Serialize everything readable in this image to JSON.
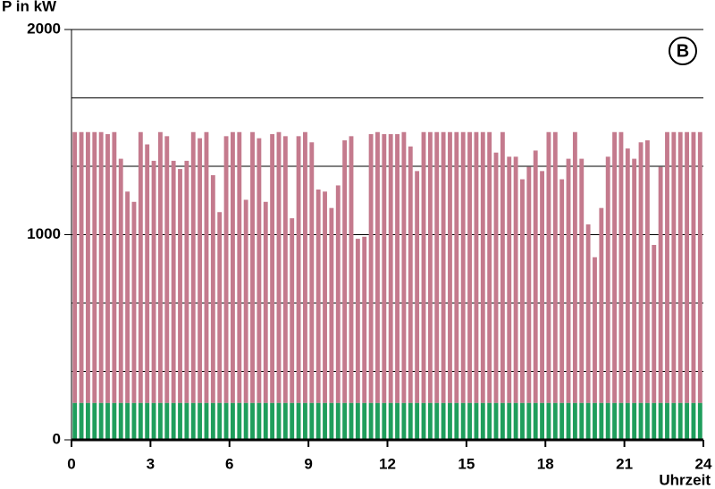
{
  "chart_data": {
    "type": "stacked-bar",
    "y_label": "P in kW",
    "x_label": "Uhrzeit",
    "annotation": "B",
    "xlim": [
      0,
      24
    ],
    "xticks": [
      0,
      3,
      6,
      9,
      12,
      15,
      18,
      21,
      24
    ],
    "ylim": [
      0,
      2000
    ],
    "yticks": [
      0,
      1000,
      2000
    ],
    "grid_lines": [
      333.33,
      666.67,
      1333.33,
      1666.67
    ],
    "x": [
      0,
      0.25,
      0.5,
      0.75,
      1,
      1.25,
      1.5,
      1.75,
      2,
      2.25,
      2.5,
      2.75,
      3,
      3.25,
      3.5,
      3.75,
      4,
      4.25,
      4.5,
      4.75,
      5,
      5.25,
      5.5,
      5.75,
      6,
      6.25,
      6.5,
      6.75,
      7,
      7.25,
      7.5,
      7.75,
      8,
      8.25,
      8.5,
      8.75,
      9,
      9.25,
      9.5,
      9.75,
      10,
      10.25,
      10.5,
      10.75,
      11,
      11.25,
      11.5,
      11.75,
      12,
      12.25,
      12.5,
      12.75,
      13,
      13.25,
      13.5,
      13.75,
      14,
      14.25,
      14.5,
      14.75,
      15,
      15.25,
      15.5,
      15.75,
      16,
      16.25,
      16.5,
      16.75,
      17,
      17.25,
      17.5,
      17.75,
      18,
      18.25,
      18.5,
      18.75,
      19,
      19.25,
      19.5,
      19.75,
      20,
      20.25,
      20.5,
      20.75,
      21,
      21.25,
      21.5,
      21.75,
      22,
      22.25,
      22.5,
      22.75,
      23,
      23.25,
      23.5,
      23.75
    ],
    "series": [
      {
        "color": "#1f9e5c",
        "values": [
          180,
          180,
          180,
          180,
          180,
          180,
          180,
          180,
          180,
          180,
          180,
          180,
          180,
          180,
          180,
          180,
          180,
          180,
          180,
          180,
          180,
          180,
          180,
          180,
          180,
          180,
          180,
          180,
          180,
          180,
          180,
          180,
          180,
          180,
          180,
          180,
          180,
          180,
          180,
          180,
          180,
          180,
          180,
          180,
          180,
          180,
          180,
          180,
          180,
          180,
          180,
          180,
          180,
          180,
          180,
          180,
          180,
          180,
          180,
          180,
          180,
          180,
          180,
          180,
          180,
          180,
          180,
          180,
          180,
          180,
          180,
          180,
          180,
          180,
          180,
          180,
          180,
          180,
          180,
          180,
          180,
          180,
          180,
          180,
          180,
          180,
          180,
          180,
          180,
          180,
          180,
          180,
          180,
          180,
          180,
          180
        ]
      },
      {
        "color": "#c47a8d",
        "values": [
          1320,
          1320,
          1320,
          1320,
          1320,
          1310,
          1320,
          1190,
          1030,
          980,
          1320,
          1260,
          1180,
          1320,
          1300,
          1180,
          1140,
          1180,
          1320,
          1290,
          1320,
          1110,
          930,
          1300,
          1320,
          1320,
          990,
          1320,
          1290,
          980,
          1310,
          1320,
          1300,
          900,
          1300,
          1320,
          1270,
          1040,
          1030,
          950,
          1060,
          1280,
          1300,
          800,
          810,
          1310,
          1320,
          1310,
          1310,
          1310,
          1320,
          1250,
          1130,
          1320,
          1320,
          1320,
          1320,
          1320,
          1320,
          1320,
          1320,
          1320,
          1320,
          1320,
          1220,
          1320,
          1200,
          1200,
          1090,
          1150,
          1230,
          1130,
          1320,
          1320,
          1090,
          1190,
          1320,
          1190,
          870,
          710,
          950,
          1200,
          1320,
          1320,
          1240,
          1190,
          1270,
          1280,
          770,
          1150,
          1320,
          1320,
          1320,
          1320,
          1320,
          1320
        ]
      }
    ]
  }
}
